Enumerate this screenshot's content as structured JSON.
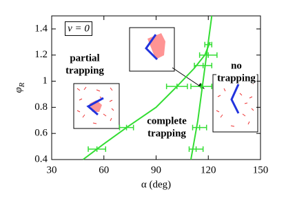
{
  "chart_data": {
    "type": "scatter",
    "xlabel": "α (deg)",
    "ylabel": {
      "text": "φ",
      "sub": "R"
    },
    "xlim": [
      30,
      150
    ],
    "ylim": [
      0.4,
      1.5
    ],
    "xticks": [
      30,
      60,
      90,
      120,
      150
    ],
    "yticks": [
      0.4,
      0.6,
      0.8,
      1,
      1.2,
      1.4
    ],
    "color": "#33dd33",
    "points": {
      "x": [
        56,
        73,
        102,
        116,
        117,
        120,
        120,
        115,
        113
      ],
      "y": [
        0.48,
        0.645,
        0.96,
        0.96,
        1.12,
        1.2,
        1.28,
        0.645,
        0.48
      ],
      "xerr": [
        5,
        4,
        6,
        6,
        5,
        5,
        2,
        4,
        4
      ]
    },
    "lines": [
      {
        "x": [
          48,
          60,
          73,
          90,
          102,
          112,
          118,
          121
        ],
        "y": [
          0.4,
          0.52,
          0.645,
          0.8,
          0.96,
          1.1,
          1.2,
          1.3
        ]
      },
      {
        "x": [
          110,
          112,
          114,
          116,
          118,
          120,
          122
        ],
        "y": [
          0.4,
          0.55,
          0.7,
          0.9,
          1.1,
          1.3,
          1.5
        ]
      }
    ],
    "annotations": [
      [
        "v = 0"
      ],
      [
        "partial",
        "trapping"
      ],
      [
        "complete",
        "trapping"
      ],
      [
        "no",
        "trapping"
      ]
    ]
  }
}
